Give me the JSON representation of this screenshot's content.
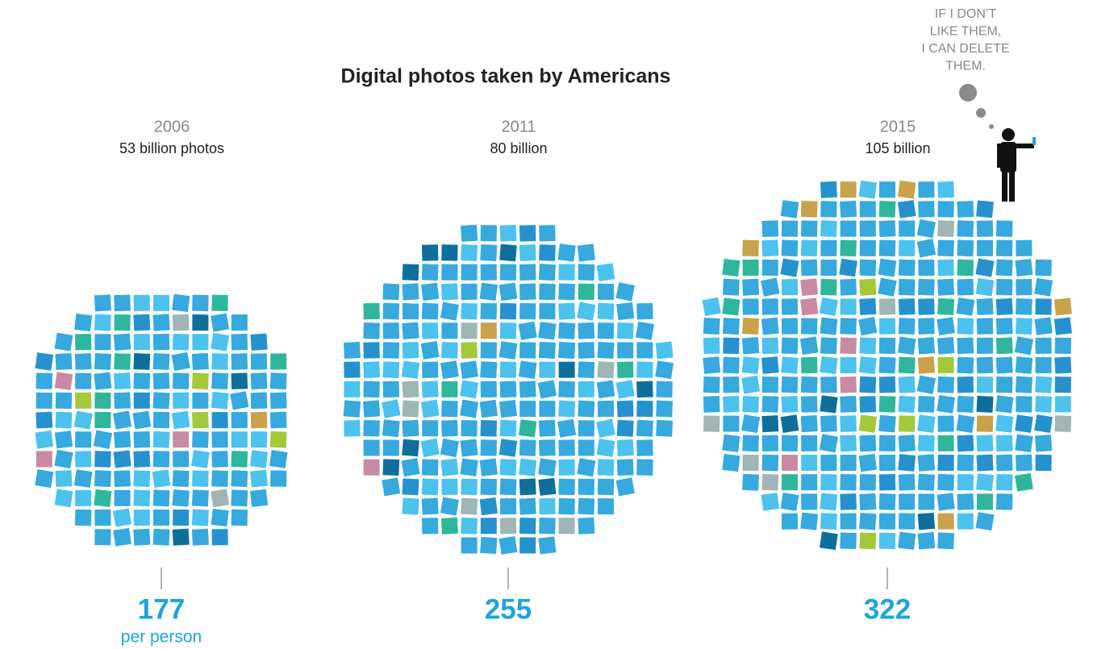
{
  "chart_data": {
    "type": "pictogram",
    "title": "Digital photos taken by Americans",
    "categories": [
      "2006",
      "2011",
      "2015"
    ],
    "values": [
      53,
      80,
      105
    ],
    "value_labels": [
      "53 billion photos",
      "80 billion",
      "105 billion"
    ],
    "per_person": {
      "values": [
        177,
        255,
        322
      ],
      "label": "per person"
    },
    "colors": [
      "#36a9df",
      "#4cc2ef",
      "#2592cf",
      "#0f6f9c",
      "#2fb79e",
      "#9fb5b6",
      "#c98aa4",
      "#c9a24a",
      "#a3c93a"
    ],
    "annotation": [
      "IF I DON’T",
      "LIKE THEM,",
      "I CAN DELETE",
      "THEM."
    ]
  }
}
